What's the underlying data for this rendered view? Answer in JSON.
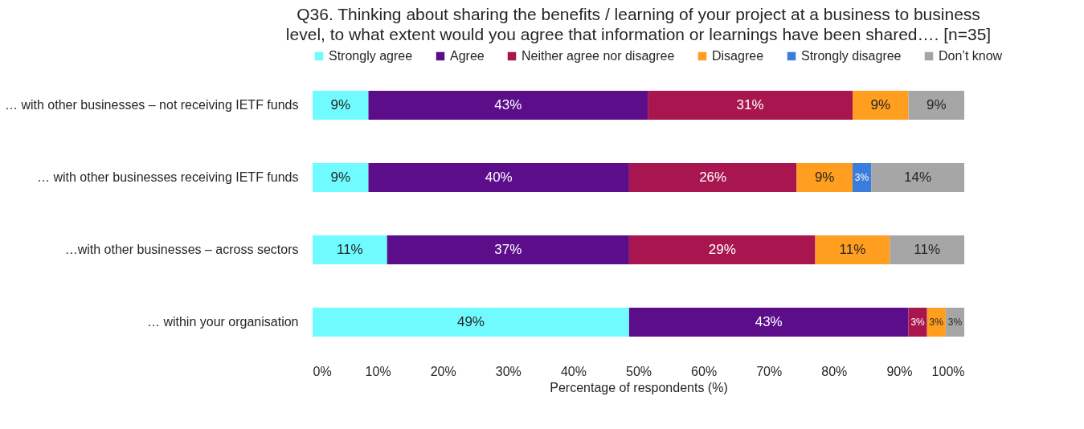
{
  "chart_data": {
    "type": "bar",
    "orientation": "horizontal",
    "stacked": true,
    "title": "Q36. Thinking about sharing the benefits / learning of your project at a business to business level, to what extent would you agree that information or learnings have been shared…. [n=35]",
    "xlabel": "Percentage of respondents (%)",
    "categories": [
      "… with other businesses – not receiving IETF funds",
      "… with other businesses receiving IETF funds",
      "…with other businesses – across sectors",
      "… within your organisation"
    ],
    "series": [
      {
        "name": "Strongly agree",
        "color": "#6ffbff",
        "values": [
          8.57,
          8.57,
          11.43,
          48.57
        ],
        "value_labels": [
          "9%",
          "9%",
          "11%",
          "49%"
        ]
      },
      {
        "name": "Agree",
        "color": "#5c0d8a",
        "values": [
          42.86,
          40.0,
          37.14,
          42.86
        ],
        "value_labels": [
          "43%",
          "40%",
          "37%",
          "43%"
        ]
      },
      {
        "name": "Neither agree nor disagree",
        "color": "#a8154f",
        "values": [
          31.43,
          25.71,
          28.57,
          2.86
        ],
        "value_labels": [
          "31%",
          "26%",
          "29%",
          "3%"
        ]
      },
      {
        "name": "Disagree",
        "color": "#ff9e1f",
        "values": [
          8.57,
          8.57,
          11.43,
          2.86
        ],
        "value_labels": [
          "9%",
          "9%",
          "11%",
          "3%"
        ]
      },
      {
        "name": "Strongly disagree",
        "color": "#3b7ddd",
        "values": [
          null,
          2.86,
          null,
          null
        ],
        "value_labels": [
          null,
          "3%",
          null,
          null
        ]
      },
      {
        "name": "Don’t know",
        "color": "#a6a6a6",
        "values": [
          8.57,
          14.29,
          11.43,
          2.85
        ],
        "value_labels": [
          "9%",
          "14%",
          "11%",
          "3%"
        ]
      }
    ],
    "xlim": [
      0,
      100
    ],
    "xticks": [
      {
        "value": 0,
        "label": "0%"
      },
      {
        "value": 10,
        "label": "10%"
      },
      {
        "value": 20,
        "label": "20%"
      },
      {
        "value": 30,
        "label": "30%"
      },
      {
        "value": 40,
        "label": "40%"
      },
      {
        "value": 50,
        "label": "50%"
      },
      {
        "value": 60,
        "label": "60%"
      },
      {
        "value": 70,
        "label": "70%"
      },
      {
        "value": 80,
        "label": "80%"
      },
      {
        "value": 90,
        "label": "90%"
      },
      {
        "value": 100,
        "label": "100%"
      }
    ],
    "legend": "top",
    "grid": false
  }
}
